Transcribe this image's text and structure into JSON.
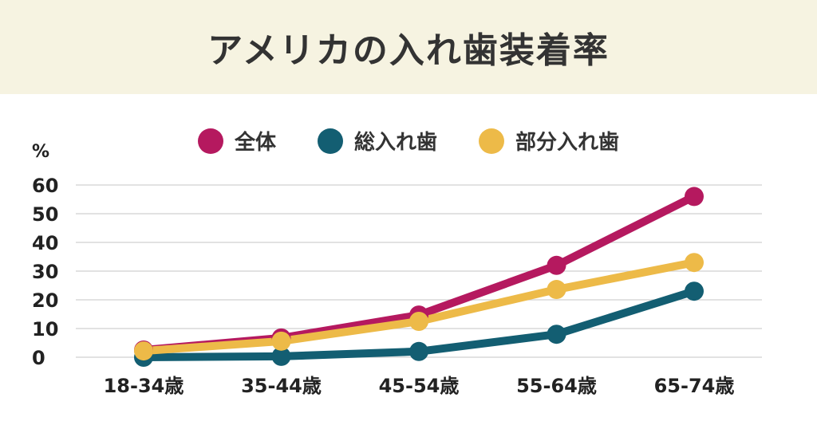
{
  "chart_data": {
    "type": "line",
    "title": "アメリカの入れ歯装着率",
    "ylabel": "%",
    "xlabel": "",
    "ylim": [
      0,
      60
    ],
    "yticks": [
      0,
      10,
      20,
      30,
      40,
      50,
      60
    ],
    "grid": true,
    "legend_position": "top",
    "categories": [
      "18-34歳",
      "35-44歳",
      "45-54歳",
      "55-64歳",
      "65-74歳"
    ],
    "series": [
      {
        "name": "全体",
        "color": "#B5195F",
        "values": [
          2.5,
          6.7,
          14.7,
          32,
          56
        ]
      },
      {
        "name": "総入れ歯",
        "color": "#135E72",
        "values": [
          0,
          0.3,
          2,
          8,
          23
        ]
      },
      {
        "name": "部分入れ歯",
        "color": "#EDBA48",
        "values": [
          2.2,
          5.6,
          12.5,
          23.6,
          33
        ]
      }
    ]
  }
}
